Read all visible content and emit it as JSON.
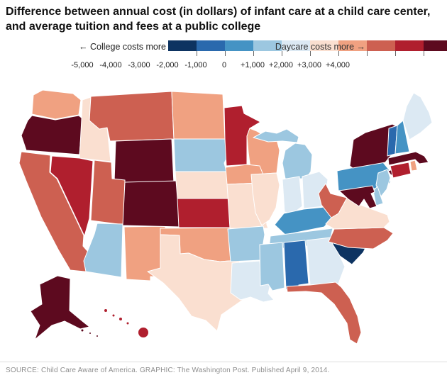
{
  "title": "Difference between annual cost (in dollars) of infant care at a child care center, and average tuition and fees at a public college",
  "legend": {
    "left_label": "← College costs more",
    "right_label": "Daycare costs more →",
    "tick_labels": [
      "-5,000",
      "-4,000",
      "-3,000",
      "-2,000",
      "-1,000",
      "0",
      "+1,000",
      "+2,000",
      "+3,000",
      "+4,000"
    ],
    "colors": [
      "#0d3361",
      "#2a69ad",
      "#4593c4",
      "#9cc7e0",
      "#dce9f3",
      "#fadfd0",
      "#f0a181",
      "#cd6051",
      "#b01f2e",
      "#5d0a1f"
    ]
  },
  "chart_data": {
    "type": "heatmap",
    "subtype": "us-state-choropleth",
    "title": "Difference between annual cost (in dollars) of infant care at a child care center, and average tuition and fees at a public college",
    "unit": "dollars",
    "scale_ticks": [
      "-5,000",
      "-4,000",
      "-3,000",
      "-2,000",
      "-1,000",
      "0",
      "+1,000",
      "+2,000",
      "+3,000",
      "+4,000"
    ],
    "legend_note_left": "← College costs more",
    "legend_note_right": "Daycare costs more →",
    "states": [
      {
        "id": "WA",
        "name": "Washington",
        "bin": 6
      },
      {
        "id": "OR",
        "name": "Oregon",
        "bin": 9
      },
      {
        "id": "CA",
        "name": "California",
        "bin": 7
      },
      {
        "id": "ID",
        "name": "Idaho",
        "bin": 5
      },
      {
        "id": "NV",
        "name": "Nevada",
        "bin": 8
      },
      {
        "id": "MT",
        "name": "Montana",
        "bin": 7
      },
      {
        "id": "WY",
        "name": "Wyoming",
        "bin": 9
      },
      {
        "id": "UT",
        "name": "Utah",
        "bin": 7
      },
      {
        "id": "CO",
        "name": "Colorado",
        "bin": 9
      },
      {
        "id": "AZ",
        "name": "Arizona",
        "bin": 3
      },
      {
        "id": "NM",
        "name": "New Mexico",
        "bin": 6
      },
      {
        "id": "ND",
        "name": "North Dakota",
        "bin": 6
      },
      {
        "id": "SD",
        "name": "South Dakota",
        "bin": 3
      },
      {
        "id": "NE",
        "name": "Nebraska",
        "bin": 5
      },
      {
        "id": "KS",
        "name": "Kansas",
        "bin": 8
      },
      {
        "id": "OK",
        "name": "Oklahoma",
        "bin": 6
      },
      {
        "id": "TX",
        "name": "Texas",
        "bin": 5
      },
      {
        "id": "MN",
        "name": "Minnesota",
        "bin": 8
      },
      {
        "id": "IA",
        "name": "Iowa",
        "bin": 6
      },
      {
        "id": "MO",
        "name": "Missouri",
        "bin": 5
      },
      {
        "id": "AR",
        "name": "Arkansas",
        "bin": 3
      },
      {
        "id": "LA",
        "name": "Louisiana",
        "bin": 4
      },
      {
        "id": "WI",
        "name": "Wisconsin",
        "bin": 6
      },
      {
        "id": "IL",
        "name": "Illinois",
        "bin": 5
      },
      {
        "id": "MI",
        "name": "Michigan",
        "bin": 3
      },
      {
        "id": "IN",
        "name": "Indiana",
        "bin": 4
      },
      {
        "id": "OH",
        "name": "Ohio",
        "bin": 4
      },
      {
        "id": "KY",
        "name": "Kentucky",
        "bin": 2
      },
      {
        "id": "TN",
        "name": "Tennessee",
        "bin": 3
      },
      {
        "id": "MS",
        "name": "Mississippi",
        "bin": 3
      },
      {
        "id": "AL",
        "name": "Alabama",
        "bin": 1
      },
      {
        "id": "GA",
        "name": "Georgia",
        "bin": 4
      },
      {
        "id": "FL",
        "name": "Florida",
        "bin": 7
      },
      {
        "id": "SC",
        "name": "South Carolina",
        "bin": 0
      },
      {
        "id": "NC",
        "name": "North Carolina",
        "bin": 7
      },
      {
        "id": "VA",
        "name": "Virginia",
        "bin": 5
      },
      {
        "id": "WV",
        "name": "West Virginia",
        "bin": 7
      },
      {
        "id": "PA",
        "name": "Pennsylvania",
        "bin": 2
      },
      {
        "id": "NY",
        "name": "New York",
        "bin": 9
      },
      {
        "id": "NJ",
        "name": "New Jersey",
        "bin": 3
      },
      {
        "id": "DE",
        "name": "Delaware",
        "bin": 3
      },
      {
        "id": "MD",
        "name": "Maryland",
        "bin": 9
      },
      {
        "id": "VT",
        "name": "Vermont",
        "bin": 1
      },
      {
        "id": "NH",
        "name": "New Hampshire",
        "bin": 2
      },
      {
        "id": "ME",
        "name": "Maine",
        "bin": 4
      },
      {
        "id": "MA",
        "name": "Massachusetts",
        "bin": 9
      },
      {
        "id": "RI",
        "name": "Rhode Island",
        "bin": 6
      },
      {
        "id": "CT",
        "name": "Connecticut",
        "bin": 8
      },
      {
        "id": "AK",
        "name": "Alaska",
        "bin": 9
      },
      {
        "id": "HI",
        "name": "Hawaii",
        "bin": 8
      }
    ]
  },
  "footer": {
    "source_line": "SOURCE: Child Care Aware of America. GRAPHIC: The Washington Post. Published April 9, 2014."
  }
}
